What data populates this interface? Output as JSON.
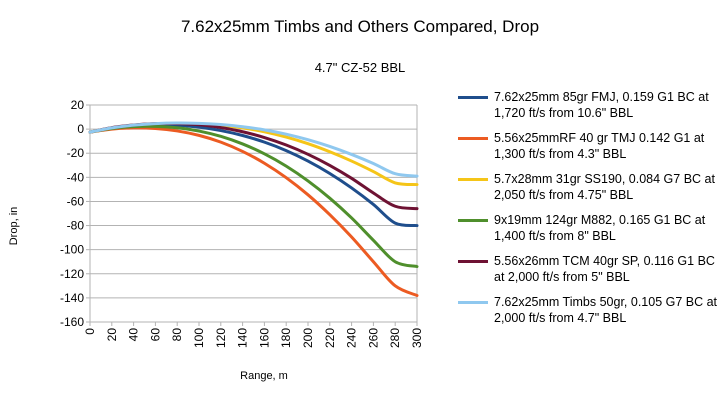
{
  "chart_data": {
    "type": "line",
    "title": "7.62x25mm Timbs and Others Compared, Drop",
    "subtitle": "4.7\" CZ-52 BBL",
    "xlabel": "Range, m",
    "ylabel": "Drop, in",
    "xlim": [
      0,
      300
    ],
    "ylim": [
      -160,
      20
    ],
    "x_ticks": [
      0,
      20,
      40,
      60,
      80,
      100,
      120,
      140,
      160,
      180,
      200,
      220,
      240,
      260,
      280,
      300
    ],
    "y_ticks": [
      20,
      0,
      -20,
      -40,
      -60,
      -80,
      -100,
      -120,
      -140,
      -160
    ],
    "grid": "horizontal",
    "legend_position": "right",
    "x": [
      0,
      20,
      40,
      60,
      80,
      100,
      120,
      140,
      160,
      180,
      200,
      220,
      240,
      260,
      280,
      300
    ],
    "series": [
      {
        "name": "7.62x25mm 85gr FMJ, 0.159 G1 BC at 1,720 ft/s from 10.6\" BBL",
        "color": "#1f4e8c",
        "values": [
          -2.5,
          0.8,
          2.8,
          3.6,
          3.2,
          1.6,
          -1.2,
          -5.3,
          -10.8,
          -17.8,
          -26.5,
          -36.8,
          -48.8,
          -62.5,
          -78.0,
          -80.0
        ]
      },
      {
        "name": "5.56x25mmRF 40 gr TMJ 0.142 G1 at 1,300 ft/s from 4.3\" BBL",
        "color": "#ec5b22",
        "values": [
          -2.5,
          0.0,
          1.0,
          0.5,
          -1.5,
          -5.2,
          -10.8,
          -18.5,
          -28.3,
          -40.3,
          -54.5,
          -71.0,
          -89.5,
          -110.0,
          -130.0,
          -138.0
        ]
      },
      {
        "name": "5.7x28mm 31gr SS190, 0.084 G7 BC at 2,050 ft/s from 4.75\" BBL",
        "color": "#f5c518",
        "values": [
          -2.5,
          1.0,
          3.2,
          4.4,
          4.8,
          4.4,
          3.2,
          1.0,
          -2.2,
          -6.6,
          -12.1,
          -18.8,
          -26.5,
          -35.2,
          -44.6,
          -46.0
        ]
      },
      {
        "name": "9x19mm 124gr M882, 0.165 G1 BC at 1,400 ft/s from 8\" BBL",
        "color": "#4f8f2c",
        "values": [
          -2.5,
          0.5,
          2.1,
          2.3,
          1.1,
          -1.6,
          -6.0,
          -12.3,
          -20.5,
          -30.7,
          -43.0,
          -57.3,
          -73.7,
          -92.2,
          -110.0,
          -114.0
        ]
      },
      {
        "name": "5.56x26mm TCM 40gr SP, 0.116 G1 BC at 2,000 ft/s from 5\" BBL",
        "color": "#6e1233",
        "values": [
          -2.5,
          1.2,
          3.4,
          4.5,
          4.6,
          3.6,
          1.3,
          -2.2,
          -7.0,
          -13.2,
          -20.9,
          -30.1,
          -40.8,
          -53.0,
          -64.0,
          -66.0
        ]
      },
      {
        "name": "7.62x25mm Timbs 50gr, 0.105 G7 BC at 2,000 ft/s from 4.7\" BBL",
        "color": "#8fc8ef",
        "values": [
          -2.5,
          1.0,
          3.3,
          4.6,
          5.1,
          4.8,
          3.8,
          2.0,
          -0.6,
          -4.2,
          -8.8,
          -14.4,
          -21.0,
          -28.5,
          -37.0,
          -39.0
        ]
      }
    ]
  }
}
